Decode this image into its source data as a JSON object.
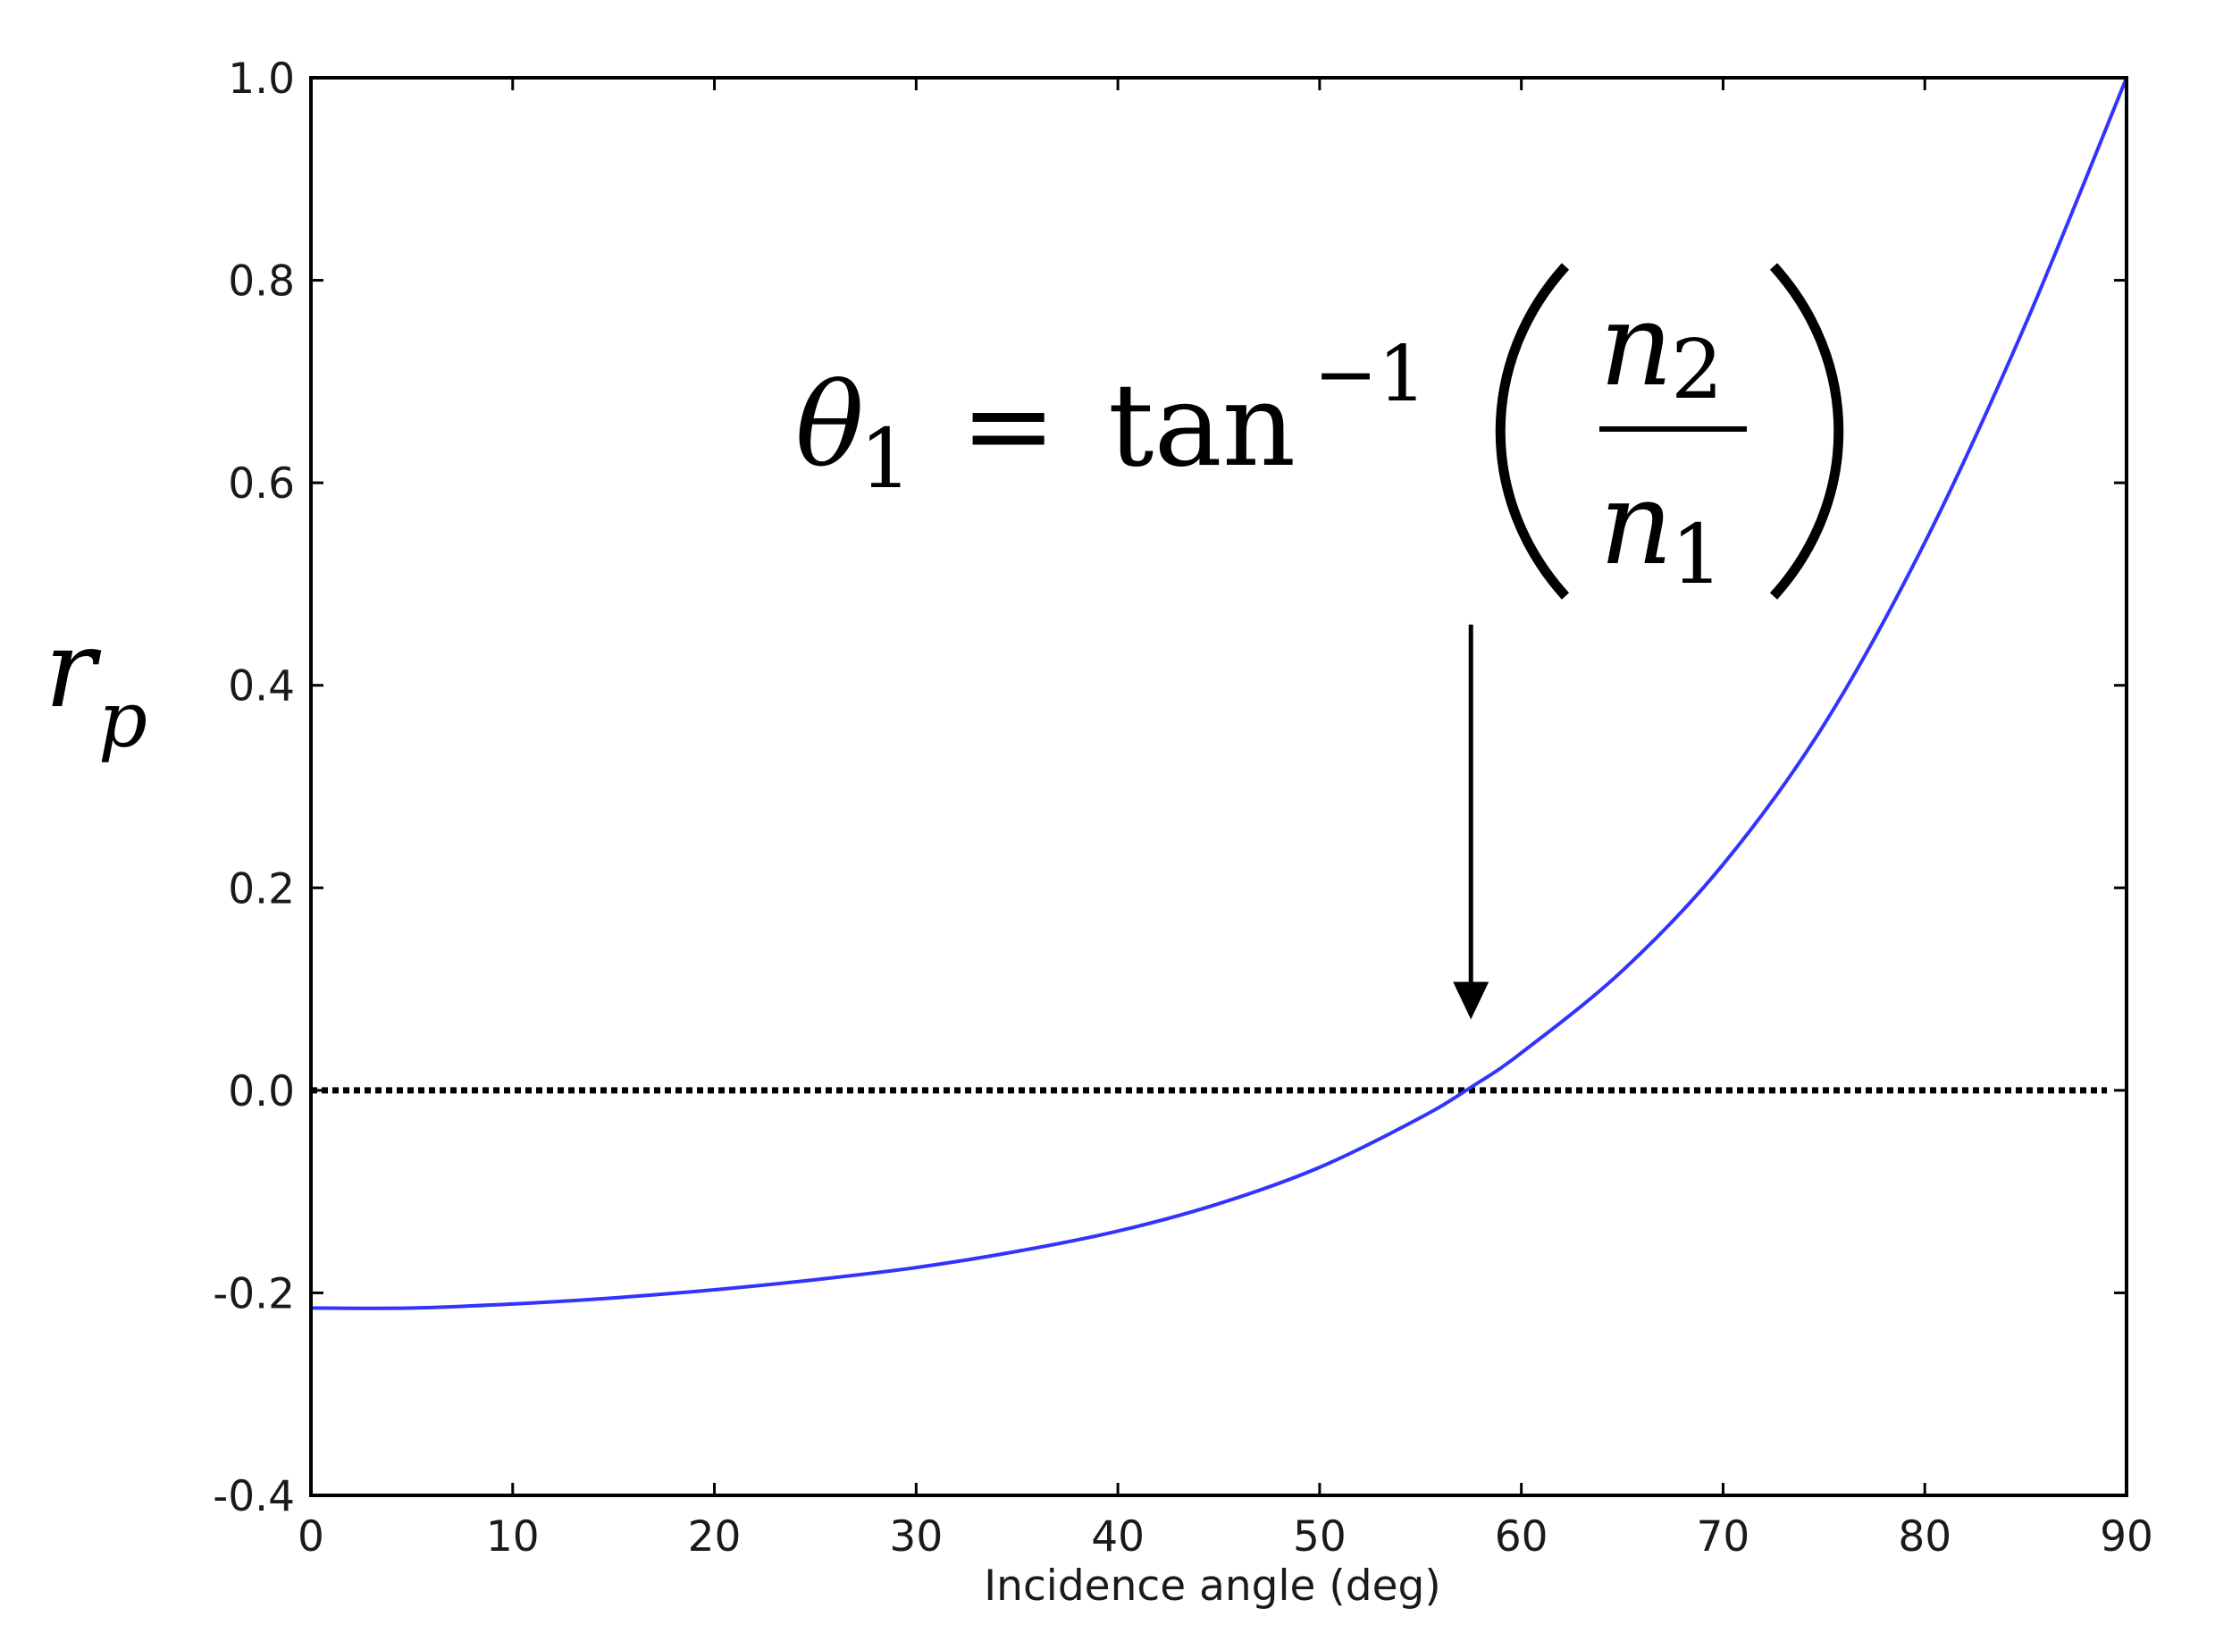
{
  "chart_data": {
    "type": "line",
    "xlabel": "Incidence angle (deg)",
    "ylabel": {
      "symbol": "r",
      "subscript": "p"
    },
    "xlim": [
      0,
      90
    ],
    "ylim": [
      -0.4,
      1.0
    ],
    "xticks": [
      "0",
      "10",
      "20",
      "30",
      "40",
      "50",
      "60",
      "70",
      "80",
      "90"
    ],
    "yticks": [
      "-0.4",
      "-0.2",
      "0.0",
      "0.2",
      "0.4",
      "0.6",
      "0.8",
      "1.0"
    ],
    "grid": false,
    "series": [
      {
        "color": "#3333ff",
        "x": [
          0,
          5,
          10,
          15,
          20,
          25,
          30,
          35,
          40,
          45,
          50,
          55,
          57.5,
          60,
          65,
          70,
          75,
          80,
          85,
          90
        ],
        "y": [
          -0.215,
          -0.215,
          -0.211,
          -0.205,
          -0.197,
          -0.187,
          -0.175,
          -0.159,
          -0.139,
          -0.112,
          -0.076,
          -0.027,
          0.003,
          0.037,
          0.118,
          0.223,
          0.361,
          0.541,
          0.757,
          1.0
        ]
      }
    ],
    "reference_line": {
      "y": 0.0,
      "style": "dotted",
      "color": "#000000"
    },
    "annotation": {
      "equation": {
        "lhs": "θ",
        "lhs_sub": "1",
        "equals": "=",
        "func": "tan",
        "sup": "−1",
        "num": "n",
        "num_sub": "2",
        "den": "n",
        "den_sub": "1"
      },
      "arrow_x": 57.5,
      "arrow_from_y": 0.46,
      "arrow_to_y": 0.07
    }
  }
}
